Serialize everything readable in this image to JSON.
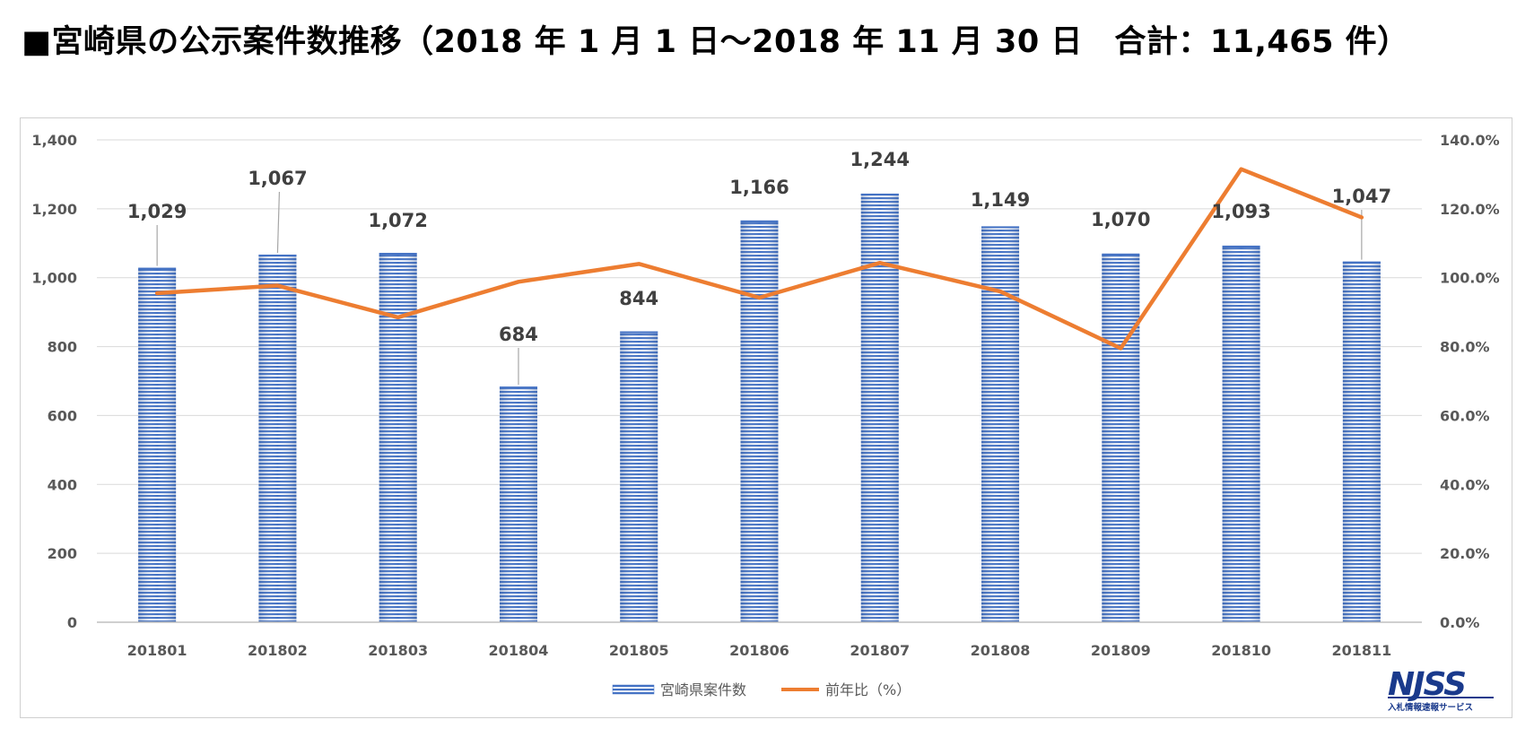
{
  "header": {
    "title": "■宮崎県の公示案件数推移（2018 年 1 月 1 日～2018 年 11 月 30 日　合計：11,465 件）"
  },
  "chart_data": {
    "type": "bar",
    "categories": [
      "201801",
      "201802",
      "201803",
      "201804",
      "201805",
      "201806",
      "201807",
      "201808",
      "201809",
      "201810",
      "201811"
    ],
    "series": [
      {
        "name": "宮崎県案件数",
        "type": "bar",
        "axis": "left",
        "values": [
          1029,
          1067,
          1072,
          684,
          844,
          1166,
          1244,
          1149,
          1070,
          1093,
          1047
        ],
        "labels": [
          "1,029",
          "1,067",
          "1,072",
          "684",
          "844",
          "1,166",
          "1,244",
          "1,149",
          "1,070",
          "1,093",
          "1,047"
        ],
        "color": "#4472c4"
      },
      {
        "name": "前年比（%）",
        "type": "line",
        "axis": "right",
        "values": [
          95.5,
          97.7,
          88.5,
          98.8,
          104.0,
          94.2,
          104.3,
          96.0,
          79.5,
          131.5,
          117.5
        ],
        "color": "#ed7d31"
      }
    ],
    "ylim": [
      0,
      1400
    ],
    "y_ticks": [
      "0",
      "200",
      "400",
      "600",
      "800",
      "1,000",
      "1,200",
      "1,400"
    ],
    "y2lim": [
      0,
      140
    ],
    "y2_ticks": [
      "0.0%",
      "20.0%",
      "40.0%",
      "60.0%",
      "80.0%",
      "100.0%",
      "120.0%",
      "140.0%"
    ],
    "grid": true,
    "legend_position": "bottom"
  },
  "logo": {
    "text": "NJSS",
    "subtitle": "入札情報速報サービス"
  }
}
